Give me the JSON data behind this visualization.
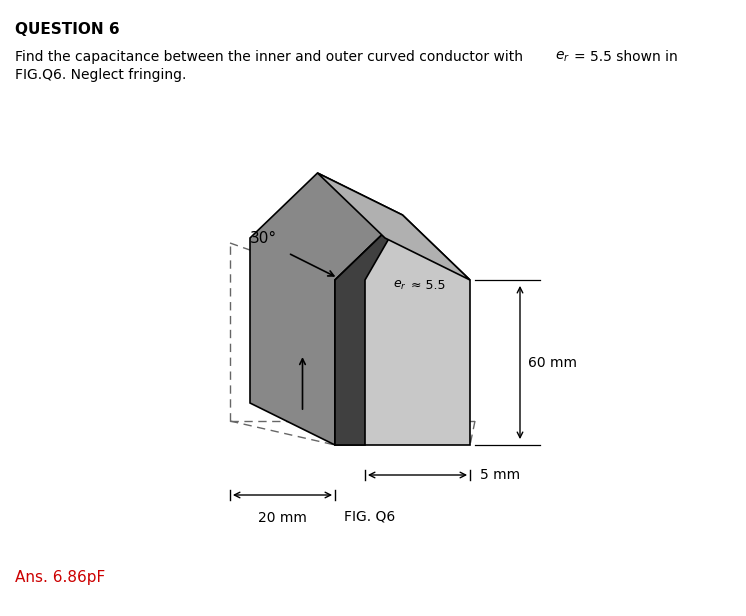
{
  "title": "QUESTION 6",
  "question_line1": "Find the capacitance between the inner and outer curved conductor with e",
  "question_line1b": "r",
  "question_line1c": " = 5.5 shown in",
  "question_line2": "FIG.Q6. Neglect fringing.",
  "answer_text": "Ans. 6.86pF",
  "fig_label": "FIG. Q6",
  "label_30deg": "30°",
  "label_er": "e",
  "label_er_sub": "r",
  "label_er_val": " ≈ 5.5",
  "label_20mm": "20 mm",
  "label_5mm": "5 mm",
  "label_60mm": "60 mm",
  "bg_color": "#ffffff",
  "title_color": "#000000",
  "answer_color": "#cc0000",
  "body_light": "#c8c8c8",
  "body_side": "#888888",
  "body_top_left": "#b0b0b0",
  "inner_dark": "#404040",
  "outline_color": "#000000",
  "dashed_color": "#666666"
}
